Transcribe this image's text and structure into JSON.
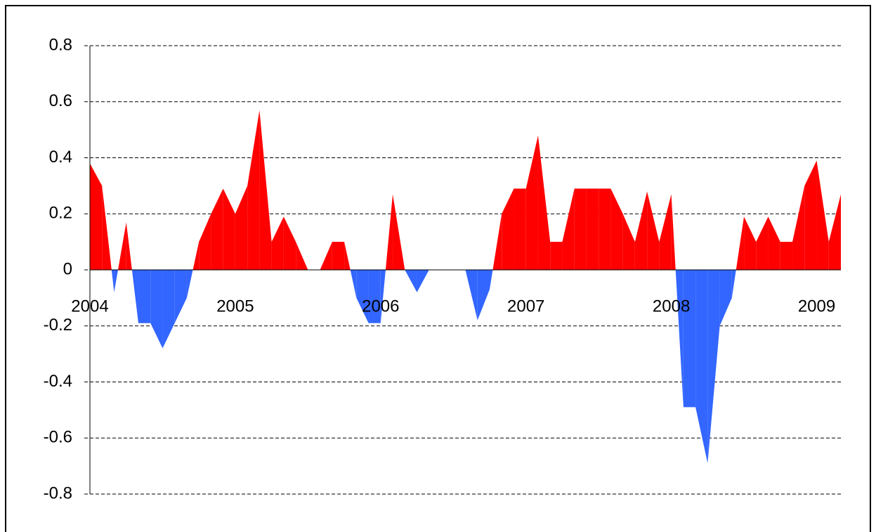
{
  "chart_data": {
    "type": "area",
    "categories": [
      "2004",
      null,
      null,
      null,
      null,
      null,
      null,
      null,
      null,
      null,
      null,
      null,
      "2005",
      null,
      null,
      null,
      null,
      null,
      null,
      null,
      null,
      null,
      null,
      null,
      "2006",
      null,
      null,
      null,
      null,
      null,
      null,
      null,
      null,
      null,
      null,
      null,
      "2007",
      null,
      null,
      null,
      null,
      null,
      null,
      null,
      null,
      null,
      null,
      null,
      "2008",
      null,
      null,
      null,
      null,
      null,
      null,
      null,
      null,
      null,
      null,
      null,
      "2009",
      null,
      null
    ],
    "values": [
      0.38,
      0.3,
      -0.08,
      0.17,
      -0.19,
      -0.19,
      -0.28,
      -0.19,
      -0.1,
      0.1,
      0.2,
      0.29,
      0.2,
      0.3,
      0.57,
      0.1,
      0.19,
      0.1,
      0,
      0,
      0.1,
      0.1,
      -0.1,
      -0.19,
      -0.19,
      0.27,
      0,
      -0.08,
      0,
      0,
      0,
      0,
      -0.18,
      -0.07,
      0.2,
      0.29,
      0.29,
      0.48,
      0.1,
      0.1,
      0.29,
      0.29,
      0.29,
      0.29,
      0.2,
      0.1,
      0.28,
      0.1,
      0.27,
      -0.49,
      -0.49,
      -0.69,
      -0.2,
      -0.1,
      0.19,
      0.1,
      0.19,
      0.1,
      0.1,
      0.3,
      0.39,
      0.1,
      0.27
    ],
    "color": "#ff0000",
    "negative_color": "#3366ff",
    "ylim": [
      -0.8,
      0.8
    ],
    "yticks": [
      -0.8,
      -0.6,
      -0.4,
      -0.2,
      0,
      0.2,
      0.4,
      0.6,
      0.8
    ],
    "grid": true
  }
}
